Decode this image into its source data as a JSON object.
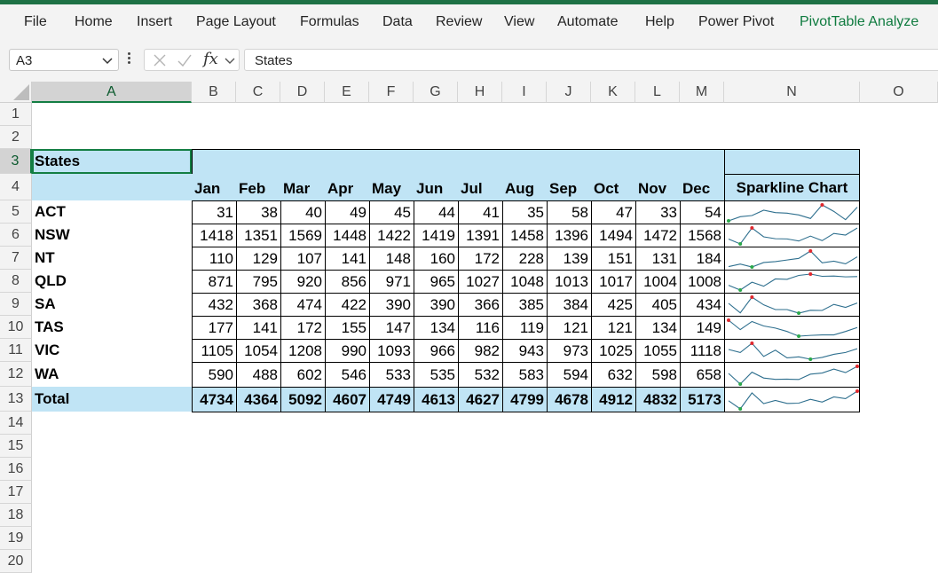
{
  "ribbon": {
    "tabs": [
      "File",
      "Home",
      "Insert",
      "Page Layout",
      "Formulas",
      "Data",
      "Review",
      "View",
      "Automate",
      "Help",
      "Power Pivot",
      "PivotTable Analyze"
    ],
    "active": "PivotTable Analyze"
  },
  "formula_bar": {
    "name_box": "A3",
    "fx": "fx",
    "formula": "States"
  },
  "columns": [
    "A",
    "B",
    "C",
    "D",
    "E",
    "F",
    "G",
    "H",
    "I",
    "J",
    "K",
    "L",
    "M",
    "N",
    "O"
  ],
  "rows": [
    "1",
    "2",
    "3",
    "4",
    "5",
    "6",
    "7",
    "8",
    "9",
    "10",
    "11",
    "12",
    "13",
    "14",
    "15",
    "16",
    "17",
    "18",
    "19",
    "20"
  ],
  "table": {
    "header": "States",
    "months": [
      "Jan",
      "Feb",
      "Mar",
      "Apr",
      "May",
      "Jun",
      "Jul",
      "Aug",
      "Sep",
      "Oct",
      "Nov",
      "Dec"
    ],
    "sparkline_header": "Sparkline Chart",
    "data": [
      {
        "state": "ACT",
        "values": [
          31,
          38,
          40,
          49,
          45,
          44,
          41,
          35,
          58,
          47,
          33,
          54
        ]
      },
      {
        "state": "NSW",
        "values": [
          1418,
          1351,
          1569,
          1448,
          1422,
          1419,
          1391,
          1458,
          1396,
          1494,
          1472,
          1568
        ]
      },
      {
        "state": "NT",
        "values": [
          110,
          129,
          107,
          141,
          148,
          160,
          172,
          228,
          139,
          151,
          131,
          184
        ]
      },
      {
        "state": "QLD",
        "values": [
          871,
          795,
          920,
          856,
          971,
          965,
          1027,
          1048,
          1013,
          1017,
          1004,
          1008
        ]
      },
      {
        "state": "SA",
        "values": [
          432,
          368,
          474,
          422,
          390,
          390,
          366,
          385,
          384,
          425,
          405,
          434
        ]
      },
      {
        "state": "TAS",
        "values": [
          177,
          141,
          172,
          155,
          147,
          134,
          116,
          119,
          121,
          121,
          134,
          149
        ]
      },
      {
        "state": "VIC",
        "values": [
          1105,
          1054,
          1208,
          990,
          1093,
          966,
          982,
          943,
          973,
          1025,
          1055,
          1118
        ]
      },
      {
        "state": "WA",
        "values": [
          590,
          488,
          602,
          546,
          533,
          535,
          532,
          583,
          594,
          632,
          598,
          658
        ]
      }
    ],
    "total": {
      "label": "Total",
      "values": [
        4734,
        4364,
        5092,
        4607,
        4749,
        4613,
        4627,
        4799,
        4678,
        4912,
        4832,
        5173
      ]
    }
  },
  "colors": {
    "accent": "#1e7145",
    "header_fill": "#c0e4f5",
    "spark_line": "#2e6f8e",
    "spark_high": "#e0282e",
    "spark_low": "#2aa84a"
  }
}
